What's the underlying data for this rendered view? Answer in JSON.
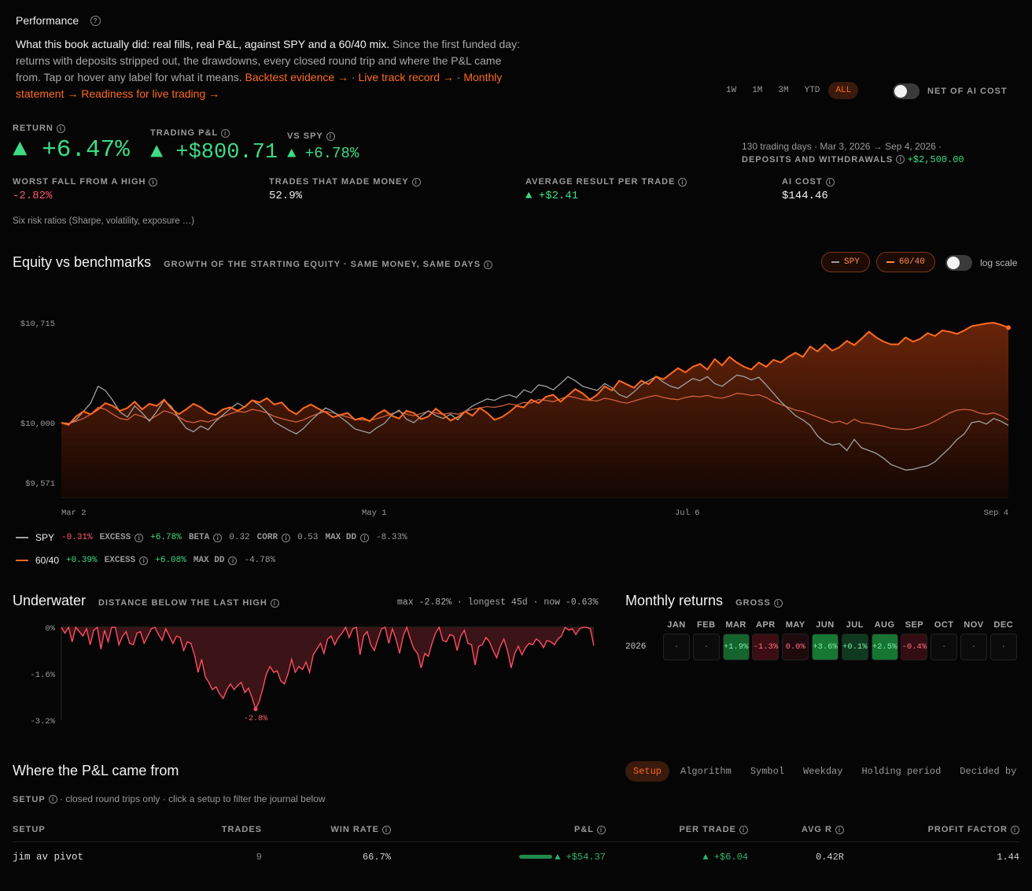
{
  "header": {
    "title": "Performance",
    "intro_strong": "What this book actually did: real fills, real P&L, against SPY and a 60/40 mix.",
    "intro_rest": " Since the first funded day: returns with deposits stripped out, the drawdowns, every closed round trip and where the P&L came from. Tap or hover any label for what it means.",
    "links": [
      "Backtest evidence →",
      "Live track record →",
      "Monthly statement →",
      "Readiness for live trading →"
    ],
    "sep": "·"
  },
  "ranges": [
    "1W",
    "1M",
    "3M",
    "YTD",
    "ALL"
  ],
  "active_range": "ALL",
  "net_ai_label": "NET OF AI COST",
  "kpis": {
    "return_label": "RETURN",
    "return_value": "▲ +6.47%",
    "pnl_label": "TRADING P&L",
    "pnl_value": "▲ +$800.71",
    "spy_label": "VS SPY",
    "spy_value": "▲ +6.78%",
    "meta_line": "130 trading days · Mar 3, 2026 → Sep 4, 2026 ·",
    "deposits_label": "DEPOSITS AND WITHDRAWALS",
    "deposits_value": "+$2,500.00"
  },
  "stats": [
    {
      "label": "WORST FALL FROM A HIGH",
      "value": "-2.82%"
    },
    {
      "label": "TRADES THAT MADE MONEY",
      "value": "52.9%"
    },
    {
      "label": "AVERAGE RESULT PER TRADE",
      "value": "▲ +$2.41"
    },
    {
      "label": "AI COST",
      "value": "$144.46"
    }
  ],
  "risk_ratios": "Six risk ratios (Sharpe, volatility, exposure …)",
  "equity": {
    "title": "Equity vs benchmarks",
    "subtitle": "GROWTH OF THE STARTING EQUITY · SAME MONEY, SAME DAYS",
    "pill_spy": "SPY",
    "pill_6040": "60/40",
    "log_label": "log scale",
    "y_ticks": [
      "$10,715",
      "$10,000",
      "$9,571"
    ],
    "x_ticks": [
      "Mar 2",
      "May 1",
      "Jul 6",
      "Sep 4"
    ],
    "legend": [
      {
        "name": "SPY",
        "ret": "-0.31%",
        "excess_label": "EXCESS",
        "excess": "+6.78%",
        "k1": "BETA",
        "v1": "0.32",
        "k2": "CORR",
        "v2": "0.53",
        "k3": "MAX DD",
        "v3": "-8.33%"
      },
      {
        "name": "60/40",
        "ret": "+0.39%",
        "excess_label": "EXCESS",
        "excess": "+6.08%",
        "k3": "MAX DD",
        "v3": "-4.78%"
      }
    ]
  },
  "underwater": {
    "title": "Underwater",
    "subtitle": "DISTANCE BELOW THE LAST HIGH",
    "stats": "max -2.82% · longest 45d · now -0.63%",
    "y_ticks": [
      "0%",
      "-1.6%",
      "-3.2%"
    ],
    "marker": "-2.8%"
  },
  "monthly": {
    "title": "Monthly returns",
    "subtitle": "GROSS",
    "year": "2026",
    "months": [
      "JAN",
      "FEB",
      "MAR",
      "APR",
      "MAY",
      "JUN",
      "JUL",
      "AUG",
      "SEP",
      "OCT",
      "NOV",
      "DEC"
    ],
    "values": [
      "·",
      "·",
      "+1.9%",
      "-1.3%",
      "0.0%",
      "+3.6%",
      "+0.1%",
      "+2.5%",
      "-0.4%",
      "·",
      "·",
      "·"
    ]
  },
  "pnl": {
    "title": "Where the P&L came from",
    "tabs": [
      "Setup",
      "Algorithm",
      "Symbol",
      "Weekday",
      "Holding period",
      "Decided by"
    ],
    "active_tab": "Setup",
    "caption_label": "SETUP",
    "caption_rest": "· closed round trips only · click a setup to filter the journal below",
    "columns": [
      "SETUP",
      "TRADES",
      "WIN RATE",
      "P&L",
      "PER TRADE",
      "AVG R",
      "PROFIT FACTOR"
    ],
    "rows": [
      {
        "setup": "jim av pivot",
        "trades": "9",
        "win_rate": "66.7%",
        "pnl": "▲ +$54.37",
        "pnl_fraction": 1.0,
        "per_trade": "▲ +$6.04",
        "avg_r": "0.42R",
        "pf": "1.44"
      }
    ]
  },
  "colors": {
    "accent": "#ff6a1f",
    "green": "#3ddc84",
    "red": "#ff5b6e",
    "spy": "#9a9a9a",
    "sixty_forty": "#d06040"
  },
  "chart_data": [
    {
      "type": "line",
      "title": "Equity vs benchmarks",
      "x_ticks": [
        "Mar 2",
        "May 1",
        "Jul 6",
        "Sep 4"
      ],
      "ylim": [
        9571,
        10715
      ],
      "series": [
        {
          "name": "Book",
          "values": [
            10000,
            9985,
            10045,
            10080,
            10060,
            10095,
            10140,
            10120,
            10085,
            10105,
            10150,
            10095,
            10135,
            10120,
            10165,
            10100,
            10060,
            10095,
            10135,
            10110,
            10070,
            10055,
            10095,
            10110,
            10085,
            10115,
            10160,
            10145,
            10175,
            10130,
            10145,
            10090,
            10060,
            10105,
            10130,
            10100,
            10075,
            10040,
            10055,
            10070,
            10020,
            10035,
            10010,
            10060,
            10090,
            10050,
            10030,
            10085,
            10070,
            10025,
            10045,
            10100,
            10060,
            10015,
            10040,
            10080,
            10050,
            10105,
            10070,
            10020,
            10040,
            10075,
            10120,
            10110,
            10165,
            10140,
            10185,
            10200,
            10150,
            10195,
            10240,
            10210,
            10165,
            10200,
            10260,
            10230,
            10300,
            10275,
            10250,
            10300,
            10275,
            10330,
            10310,
            10350,
            10390,
            10360,
            10400,
            10420,
            10380,
            10455,
            10410,
            10470,
            10430,
            10400,
            10380,
            10430,
            10400,
            10450,
            10430,
            10470,
            10500,
            10470,
            10545,
            10510,
            10560,
            10515,
            10540,
            10585,
            10555,
            10600,
            10650,
            10610,
            10580,
            10560,
            10560,
            10610,
            10580,
            10600,
            10640,
            10620,
            10660,
            10650,
            10635,
            10660,
            10690,
            10700,
            10710,
            10715,
            10700,
            10680
          ]
        },
        {
          "name": "SPY",
          "values": [
            10000,
            9990,
            10020,
            10080,
            10140,
            10260,
            10230,
            10160,
            10075,
            10040,
            10120,
            10070,
            10010,
            10080,
            10160,
            10115,
            10030,
            9960,
            9935,
            9975,
            9950,
            10010,
            10055,
            10100,
            10140,
            10110,
            10160,
            10125,
            10075,
            10005,
            9975,
            9945,
            9920,
            9960,
            10015,
            10065,
            10105,
            10080,
            10040,
            10000,
            9955,
            9940,
            9925,
            9965,
            9995,
            10055,
            10090,
            10025,
            10000,
            10045,
            10085,
            10050,
            10030,
            10060,
            10020,
            10080,
            10120,
            10145,
            10170,
            10160,
            10185,
            10200,
            10180,
            10235,
            10215,
            10270,
            10260,
            10235,
            10280,
            10330,
            10300,
            10260,
            10245,
            10230,
            10280,
            10250,
            10200,
            10180,
            10220,
            10270,
            10300,
            10330,
            10290,
            10260,
            10245,
            10280,
            10315,
            10300,
            10330,
            10280,
            10260,
            10300,
            10340,
            10330,
            10305,
            10325,
            10270,
            10210,
            10150,
            10100,
            10050,
            10020,
            9980,
            9905,
            9860,
            9840,
            9850,
            9800,
            9880,
            9820,
            9800,
            9780,
            9745,
            9700,
            9680,
            9660,
            9665,
            9680,
            9690,
            9720,
            9770,
            9820,
            9880,
            9920,
            10000,
            10010,
            9990,
            10030,
            10010,
            9980
          ]
        },
        {
          "name": "60/40",
          "values": [
            10000,
            9995,
            10010,
            10030,
            10060,
            10110,
            10095,
            10060,
            10030,
            10020,
            10060,
            10045,
            10020,
            10050,
            10085,
            10070,
            10040,
            10010,
            10000,
            10015,
            10005,
            10025,
            10045,
            10065,
            10080,
            10075,
            10095,
            10085,
            10070,
            10045,
            10030,
            10015,
            10005,
            10020,
            10045,
            10065,
            10080,
            10070,
            10055,
            10040,
            10025,
            10020,
            10015,
            10030,
            10045,
            10065,
            10080,
            10060,
            10050,
            10065,
            10080,
            10070,
            10060,
            10070,
            10060,
            10080,
            10095,
            10105,
            10115,
            10110,
            10120,
            10135,
            10125,
            10145,
            10140,
            10165,
            10160,
            10150,
            10170,
            10190,
            10180,
            10165,
            10160,
            10155,
            10175,
            10165,
            10150,
            10140,
            10155,
            10170,
            10185,
            10195,
            10180,
            10170,
            10165,
            10180,
            10190,
            10185,
            10195,
            10180,
            10175,
            10190,
            10210,
            10205,
            10195,
            10200,
            10180,
            10150,
            10130,
            10110,
            10090,
            10080,
            10060,
            10040,
            10020,
            10000,
            10010,
            9990,
            10025,
            10000,
            9995,
            9985,
            9975,
            9960,
            9955,
            9950,
            9955,
            9970,
            9985,
            10010,
            10040,
            10070,
            10090,
            10095,
            10090,
            10070,
            10060,
            10070,
            10050,
            10020
          ]
        }
      ]
    },
    {
      "type": "area",
      "title": "Underwater",
      "ylim": [
        -3.2,
        0
      ],
      "y_ticks": [
        "0%",
        "-1.6%",
        "-3.2%"
      ],
      "series": [
        {
          "name": "Underwater",
          "values": [
            0,
            -0.2,
            0,
            -0.5,
            0,
            -0.15,
            -0.3,
            -0.05,
            -0.6,
            -0.1,
            0,
            -0.75,
            -0.1,
            -0.5,
            0,
            0,
            -0.6,
            -0.3,
            -0.15,
            -0.55,
            -0.6,
            -0.2,
            -0.15,
            -0.55,
            -0.3,
            -0.05,
            0,
            -0.25,
            -0.45,
            -0.05,
            -0.3,
            -0.55,
            -0.3,
            -0.35,
            -0.8,
            -0.5,
            -0.55,
            -0.95,
            -1.55,
            -1.1,
            -1.7,
            -1.9,
            -2.15,
            -2.05,
            -2.3,
            -2.45,
            -2.15,
            -1.95,
            -2.15,
            -2.0,
            -1.9,
            -2.25,
            -2.1,
            -2.42,
            -2.82,
            -2.55,
            -2.1,
            -1.6,
            -1.35,
            -1.55,
            -1.5,
            -1.85,
            -1.95,
            -1.6,
            -1.1,
            -1.55,
            -1.35,
            -1.45,
            -1.2,
            -1.55,
            -0.95,
            -0.75,
            -0.55,
            -0.9,
            -0.4,
            -0.3,
            -0.6,
            -0.35,
            -0.2,
            0,
            -0.35,
            -0.05,
            0,
            -0.95,
            -0.3,
            -0.15,
            -0.6,
            -0.8,
            -0.4,
            -0.05,
            0,
            -0.55,
            -0.05,
            -0.4,
            -0.9,
            -0.3,
            0,
            -0.4,
            -0.75,
            -0.9,
            -1.4,
            -0.9,
            -1.0,
            -0.55,
            -0.2,
            0,
            -0.45,
            -0.5,
            -0.25,
            -0.3,
            -0.8,
            -0.3,
            -0.1,
            -0.55,
            -0.6,
            -1.3,
            -0.65,
            -0.6,
            -0.35,
            -0.5,
            -0.8,
            -1.05,
            -0.65,
            -0.4,
            -0.8,
            -1.4,
            -0.9,
            -0.65,
            -0.95,
            -0.7,
            -0.55,
            -0.6,
            -0.4,
            -0.5,
            -0.7,
            -0.45,
            -0.5,
            -0.6,
            -0.4,
            -0.3,
            0,
            -0.1,
            -0.05,
            -0.25,
            -0.05,
            0,
            0,
            -0.05,
            -0.63
          ]
        }
      ]
    },
    {
      "type": "heatmap",
      "title": "Monthly returns",
      "categories": [
        "JAN",
        "FEB",
        "MAR",
        "APR",
        "MAY",
        "JUN",
        "JUL",
        "AUG",
        "SEP",
        "OCT",
        "NOV",
        "DEC"
      ],
      "values": [
        null,
        null,
        1.9,
        -1.3,
        0.0,
        3.6,
        0.1,
        2.5,
        -0.4,
        null,
        null,
        null
      ]
    }
  ]
}
